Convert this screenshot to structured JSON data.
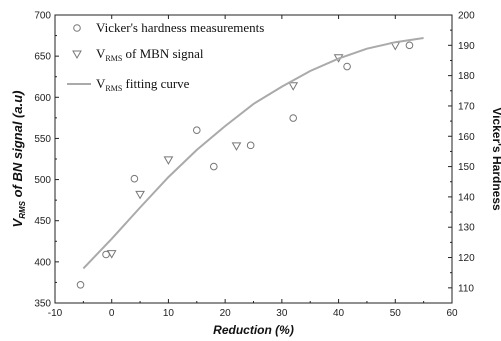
{
  "chart_data": {
    "type": "scatter",
    "xlabel": "Reduction (%)",
    "ylabel_left": {
      "main": "V",
      "sub": "RMS",
      "rest": " of BN signal  (a.u)"
    },
    "ylabel_right": "Vicker's Hardness",
    "xlim": [
      -10,
      60
    ],
    "ylim_left": [
      350,
      700
    ],
    "ylim_right": [
      105,
      200
    ],
    "x_ticks": [
      "-10",
      "0",
      "10",
      "20",
      "30",
      "40",
      "50",
      "60"
    ],
    "y_ticks_left": [
      "350",
      "400",
      "450",
      "500",
      "550",
      "600",
      "650",
      "700"
    ],
    "y_ticks_right": [
      "110",
      "120",
      "130",
      "140",
      "150",
      "160",
      "170",
      "180",
      "190",
      "200"
    ],
    "legend": [
      {
        "pre": "Vicker's hardness measurements",
        "sub": "",
        "post": ""
      },
      {
        "pre": "V",
        "sub": "RMS",
        "post": " of  MBN signal"
      },
      {
        "pre": "V",
        "sub": "RMS",
        "post": " fitting curve"
      }
    ],
    "series": [
      {
        "marker": "circle",
        "axis": "right",
        "points": [
          [
            -5.5,
            111
          ],
          [
            -1,
            121
          ],
          [
            4,
            146
          ],
          [
            15,
            162
          ],
          [
            18,
            150
          ],
          [
            24.5,
            157
          ],
          [
            32,
            166
          ],
          [
            41.5,
            183
          ],
          [
            52.5,
            190
          ]
        ]
      },
      {
        "marker": "triangle-down",
        "axis": "left",
        "points": [
          [
            0,
            410
          ],
          [
            5,
            482
          ],
          [
            10,
            524
          ],
          [
            22,
            541
          ],
          [
            32,
            614
          ],
          [
            40,
            648
          ],
          [
            50,
            663
          ]
        ]
      },
      {
        "marker": "line",
        "axis": "left",
        "points": [
          [
            -5,
            392
          ],
          [
            0,
            428
          ],
          [
            5,
            466
          ],
          [
            10,
            503
          ],
          [
            15,
            536
          ],
          [
            20,
            565
          ],
          [
            25,
            592
          ],
          [
            30,
            613
          ],
          [
            35,
            632
          ],
          [
            40,
            647
          ],
          [
            45,
            659
          ],
          [
            50,
            667
          ],
          [
            55,
            672
          ]
        ]
      }
    ],
    "colors": {
      "markers": "#777777",
      "curve": "#aaaaaa",
      "axis": "#222222"
    }
  }
}
